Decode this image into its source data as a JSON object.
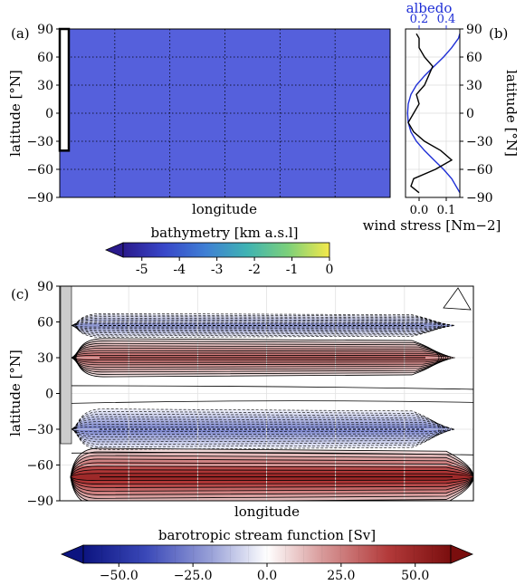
{
  "chart_data": [
    {
      "panel": "(a)",
      "type": "heatmap",
      "xlabel": "longitude",
      "ylabel": "latitude [°N]",
      "yticks": [
        "90",
        "60",
        "30",
        "0",
        "−30",
        "−60",
        "−90"
      ],
      "ylim": [
        -90,
        90
      ],
      "grid": "dotted",
      "field_value_km": -5.0,
      "land_strip": {
        "lat_from": -40,
        "lat_to": 90
      },
      "colorbar": {
        "label": "bathymetry [km a.s.l]",
        "ticks": [
          "-5",
          "-4",
          "-3",
          "-2",
          "-1",
          "0"
        ],
        "range": [
          -5.5,
          0
        ],
        "colors": [
          "#2a1a8c",
          "#3847c9",
          "#3f7fd4",
          "#3fb3b3",
          "#7cd07a",
          "#f5e94a"
        ]
      },
      "fill_color": "#5560dc"
    },
    {
      "panel": "(b)",
      "type": "line",
      "ylabel": "latitude [°N]",
      "xlabel": "wind stress [Nm−2]",
      "top_label": "albedo",
      "yticks": [
        "90",
        "60",
        "30",
        "0",
        "−30",
        "−60",
        "−90"
      ],
      "xticks": [
        "0.0",
        "0.1"
      ],
      "top_ticks": [
        "0.2",
        "0.4"
      ],
      "ylim": [
        -90,
        90
      ],
      "xlim": [
        -0.05,
        0.15
      ],
      "albedo_lim": [
        0.1,
        0.5
      ],
      "series": [
        {
          "color": "#000000",
          "lat": [
            -85,
            -78,
            -70,
            -60,
            -50,
            -40,
            -30,
            -20,
            -10,
            0,
            10,
            20,
            30,
            40,
            50,
            60,
            70,
            80,
            85
          ],
          "values": [
            0.0,
            -0.03,
            -0.02,
            0.06,
            0.12,
            0.08,
            0.02,
            -0.02,
            -0.04,
            -0.02,
            0.0,
            -0.01,
            0.02,
            0.035,
            0.05,
            0.02,
            0.0,
            0.0,
            -0.01
          ]
        },
        {
          "color": "#1f2fd6",
          "lat": [
            -85,
            -70,
            -60,
            -50,
            -40,
            -30,
            -20,
            -10,
            0,
            10,
            20,
            30,
            40,
            50,
            60,
            70,
            80,
            85
          ],
          "values": [
            0.5,
            0.44,
            0.38,
            0.31,
            0.24,
            0.18,
            0.14,
            0.12,
            0.115,
            0.12,
            0.14,
            0.18,
            0.24,
            0.31,
            0.38,
            0.44,
            0.49,
            0.5
          ]
        }
      ]
    },
    {
      "panel": "(c)",
      "type": "heatmap",
      "xlabel": "longitude",
      "ylabel": "latitude [°N]",
      "yticks": [
        "90",
        "60",
        "30",
        "0",
        "−30",
        "−60",
        "−90"
      ],
      "ylim": [
        -90,
        90
      ],
      "bands": [
        {
          "center": 57,
          "half_width": 10,
          "value": -25
        },
        {
          "center": 30,
          "half_width": 16,
          "value": 35
        },
        {
          "center": -30,
          "half_width": 17,
          "value": -30
        },
        {
          "center": -70,
          "half_width": 24,
          "value": 55
        }
      ],
      "colorbar": {
        "label": "barotropic stream function [Sv]",
        "ticks": [
          "−50.0",
          "−25.0",
          "0.0",
          "25.0",
          "50.0"
        ],
        "range": [
          -62,
          62
        ],
        "colors": [
          "#0c1480",
          "#3a48b8",
          "#9aa2d8",
          "#ffffff",
          "#d89a9a",
          "#b33a3a",
          "#7a0e0e"
        ]
      }
    }
  ]
}
